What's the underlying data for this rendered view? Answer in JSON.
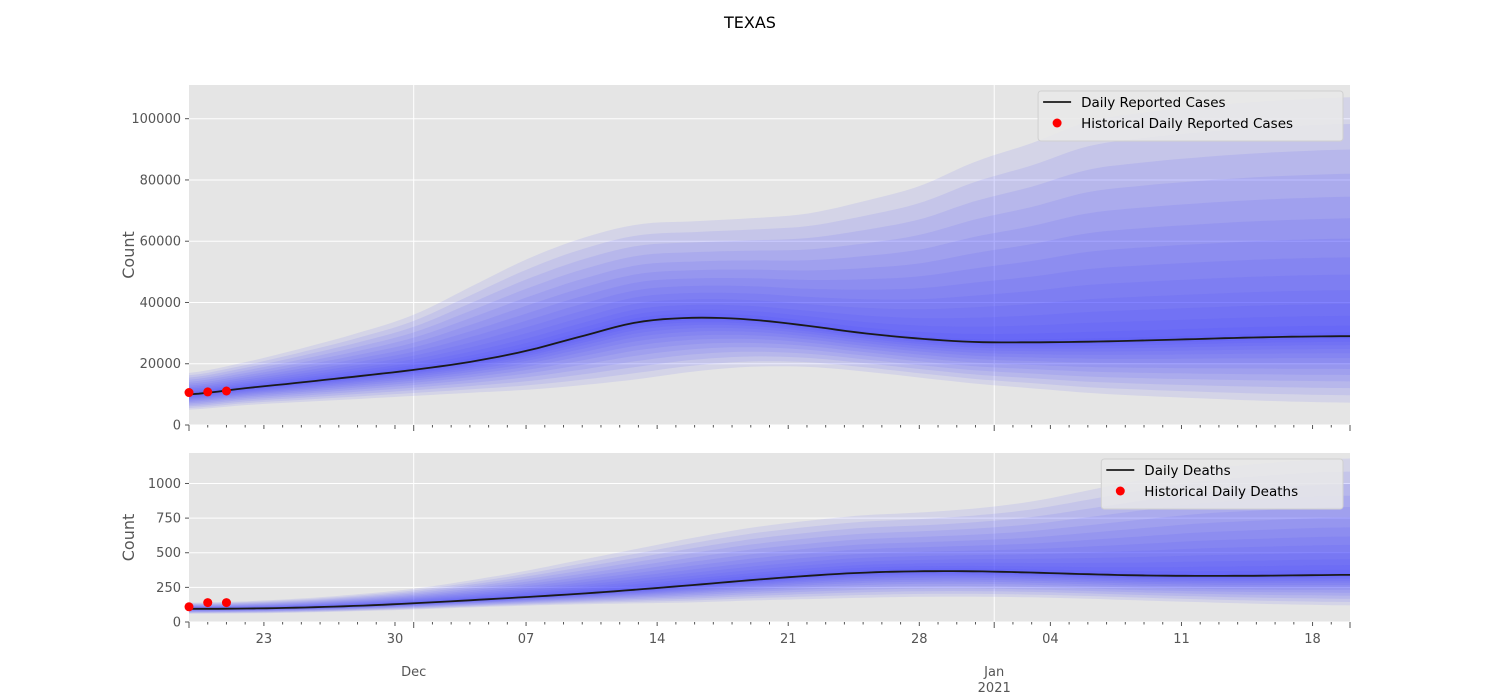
{
  "figure": {
    "title": "TEXAS"
  },
  "colors": {
    "panel_bg": "#e5e5e5",
    "grid": "#ffffff",
    "band": "#4040ff",
    "median": "#1a1a1a",
    "historical": "#ff0000",
    "tick_text": "#555555"
  },
  "chart_data": [
    {
      "type": "line",
      "ylabel": "Count",
      "ylim": [
        0,
        111000
      ],
      "yticks": [
        0,
        20000,
        40000,
        60000,
        80000,
        100000
      ],
      "ytick_labels": [
        "0",
        "20000",
        "40000",
        "60000",
        "80000",
        "100000"
      ],
      "xlim": [
        "2020-11-19",
        "2021-01-20"
      ],
      "grid": true,
      "legend": {
        "placement": "top-right",
        "entries": [
          {
            "label": "Daily Reported Cases",
            "marker": "line"
          },
          {
            "label": "Historical Daily Reported Cases",
            "marker": "dot"
          }
        ]
      },
      "series": [
        {
          "name": "Daily Reported Cases",
          "x": [
            "2020-11-19",
            "2020-11-22",
            "2020-11-25",
            "2020-11-28",
            "2020-12-01",
            "2020-12-04",
            "2020-12-07",
            "2020-12-10",
            "2020-12-13",
            "2020-12-16",
            "2020-12-19",
            "2020-12-22",
            "2020-12-25",
            "2020-12-28",
            "2020-12-31",
            "2021-01-03",
            "2021-01-06",
            "2021-01-09",
            "2021-01-12",
            "2021-01-15",
            "2021-01-18",
            "2021-01-20"
          ],
          "values": [
            10000,
            12000,
            13900,
            15900,
            18000,
            20600,
            24200,
            29000,
            33600,
            35000,
            34400,
            32400,
            30000,
            28200,
            27100,
            27000,
            27200,
            27600,
            28100,
            28600,
            28900,
            29000
          ]
        },
        {
          "name": "Historical Daily Reported Cases",
          "x": [
            "2020-11-19",
            "2020-11-20",
            "2020-11-21"
          ],
          "values": [
            10600,
            10800,
            11100
          ]
        }
      ],
      "uncertainty_bands": {
        "x": [
          "2020-11-19",
          "2020-11-22",
          "2020-11-25",
          "2020-11-28",
          "2020-12-01",
          "2020-12-04",
          "2020-12-07",
          "2020-12-10",
          "2020-12-13",
          "2020-12-16",
          "2020-12-19",
          "2020-12-22",
          "2020-12-25",
          "2020-12-28",
          "2020-12-31",
          "2021-01-03",
          "2021-01-06",
          "2021-01-09",
          "2021-01-12",
          "2021-01-15",
          "2021-01-18",
          "2021-01-20"
        ],
        "outer_lower": [
          5000,
          6500,
          7500,
          8500,
          9500,
          10500,
          11500,
          13000,
          15000,
          17500,
          19000,
          19000,
          17500,
          15500,
          13500,
          12000,
          10500,
          9500,
          8700,
          8000,
          7500,
          7300
        ],
        "outer_upper": [
          17000,
          20500,
          25000,
          30000,
          36000,
          45000,
          54000,
          61000,
          65500,
          66500,
          67500,
          69000,
          73000,
          78000,
          86000,
          92000,
          99000,
          102000,
          104000,
          105500,
          106500,
          107000
        ]
      }
    },
    {
      "type": "line",
      "ylabel": "Count",
      "ylim": [
        0,
        1220
      ],
      "yticks": [
        0,
        250,
        500,
        750,
        1000
      ],
      "ytick_labels": [
        "0",
        "250",
        "500",
        "750",
        "1000"
      ],
      "xlim": [
        "2020-11-19",
        "2021-01-20"
      ],
      "xtick_labels": [
        "23",
        "30",
        "07",
        "14",
        "21",
        "28",
        "04",
        "11",
        "18"
      ],
      "xtick_month_labels": [
        {
          "label": "Dec",
          "year": ""
        },
        {
          "label": "Jan",
          "year": "2021"
        }
      ],
      "grid": true,
      "legend": {
        "placement": "top-right",
        "entries": [
          {
            "label": "Daily Deaths",
            "marker": "line"
          },
          {
            "label": "Historical Daily Deaths",
            "marker": "dot"
          }
        ]
      },
      "series": [
        {
          "name": "Daily Deaths",
          "x": [
            "2020-11-19",
            "2020-11-22",
            "2020-11-25",
            "2020-11-28",
            "2020-12-01",
            "2020-12-04",
            "2020-12-07",
            "2020-12-10",
            "2020-12-13",
            "2020-12-16",
            "2020-12-19",
            "2020-12-22",
            "2020-12-25",
            "2020-12-28",
            "2020-12-31",
            "2021-01-03",
            "2021-01-06",
            "2021-01-09",
            "2021-01-12",
            "2021-01-15",
            "2021-01-18",
            "2021-01-20"
          ],
          "values": [
            95,
            97,
            104,
            117,
            135,
            157,
            180,
            205,
            235,
            268,
            302,
            333,
            356,
            366,
            366,
            357,
            345,
            336,
            333,
            334,
            338,
            340
          ]
        },
        {
          "name": "Historical Daily Deaths",
          "x": [
            "2020-11-19",
            "2020-11-20",
            "2020-11-21"
          ],
          "values": [
            110,
            140,
            140
          ]
        }
      ],
      "uncertainty_bands": {
        "x": [
          "2020-11-19",
          "2020-11-22",
          "2020-11-25",
          "2020-11-28",
          "2020-12-01",
          "2020-12-04",
          "2020-12-07",
          "2020-12-10",
          "2020-12-13",
          "2020-12-16",
          "2020-12-19",
          "2020-12-22",
          "2020-12-25",
          "2020-12-28",
          "2020-12-31",
          "2021-01-03",
          "2021-01-06",
          "2021-01-09",
          "2021-01-12",
          "2021-01-15",
          "2021-01-18",
          "2021-01-20"
        ],
        "outer_lower": [
          60,
          62,
          68,
          78,
          90,
          105,
          118,
          128,
          135,
          142,
          155,
          165,
          175,
          182,
          183,
          178,
          168,
          155,
          143,
          132,
          124,
          120
        ],
        "outer_upper": [
          140,
          150,
          170,
          200,
          240,
          300,
          370,
          450,
          530,
          610,
          680,
          730,
          770,
          790,
          820,
          870,
          950,
          1030,
          1100,
          1140,
          1170,
          1180
        ]
      }
    }
  ]
}
